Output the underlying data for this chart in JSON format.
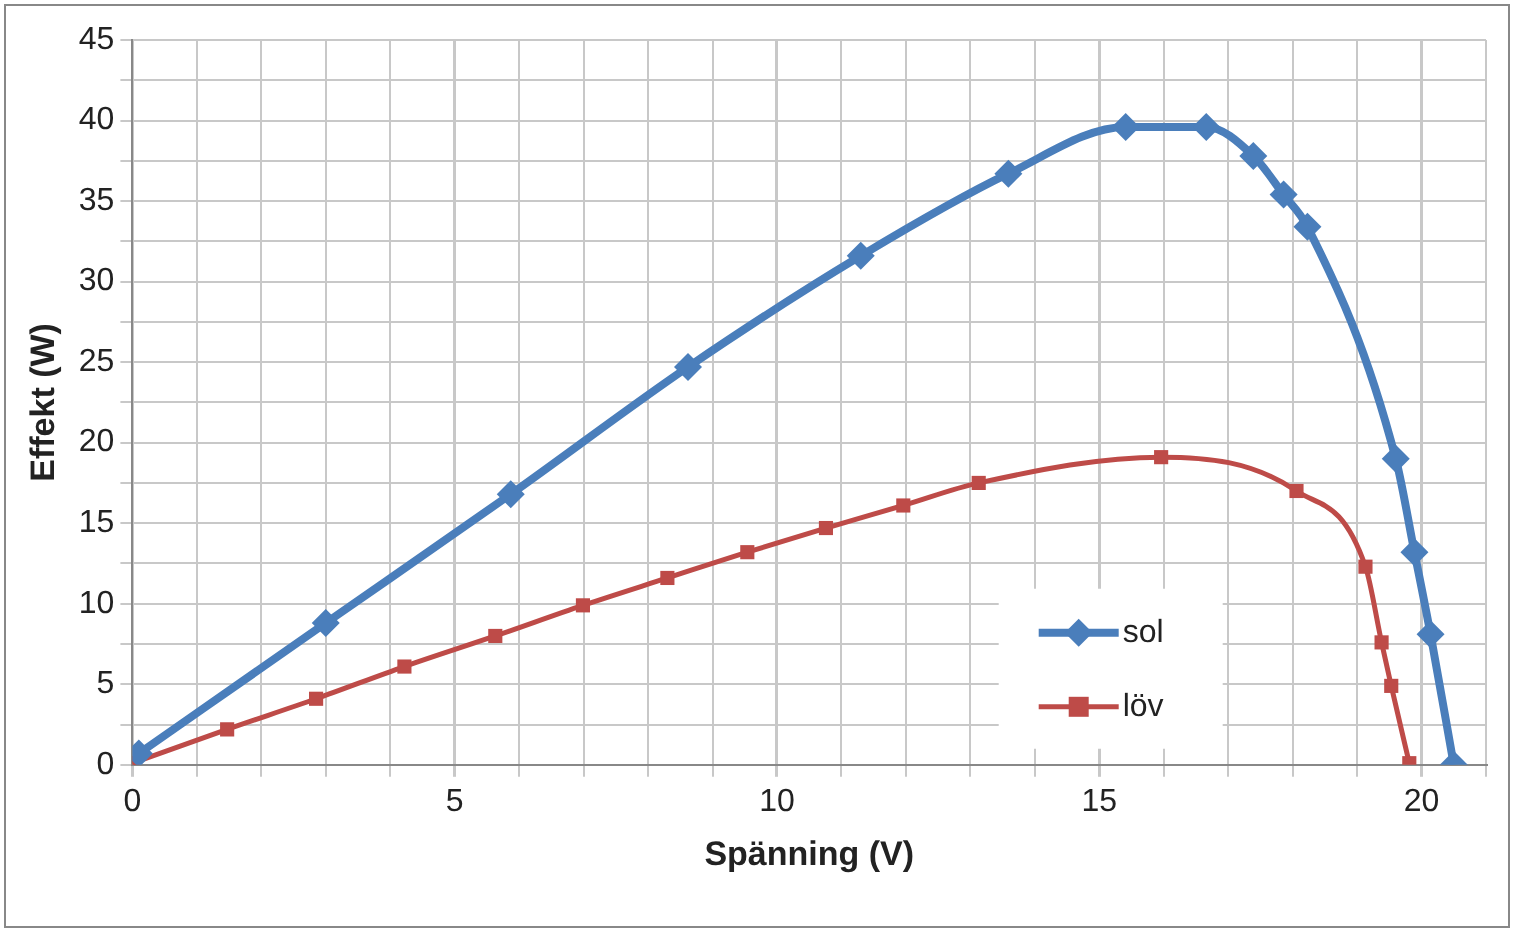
{
  "chart_data": {
    "type": "line",
    "xlabel": "Spänning (V)",
    "ylabel": "Effekt (W)",
    "xlim": [
      0,
      21
    ],
    "ylim": [
      0,
      45
    ],
    "xticks": [
      0,
      {
        "value": 1,
        "label": null
      },
      {
        "value": 2,
        "label": null
      },
      {
        "value": 3,
        "label": null
      },
      {
        "value": 4,
        "label": null
      },
      5,
      {
        "value": 6,
        "label": null
      },
      {
        "value": 7,
        "label": null
      },
      {
        "value": 8,
        "label": null
      },
      {
        "value": 9,
        "label": null
      },
      10,
      {
        "value": 11,
        "label": null
      },
      {
        "value": 12,
        "label": null
      },
      {
        "value": 13,
        "label": null
      },
      {
        "value": 14,
        "label": null
      },
      15,
      {
        "value": 16,
        "label": null
      },
      {
        "value": 17,
        "label": null
      },
      {
        "value": 18,
        "label": null
      },
      {
        "value": 19,
        "label": null
      },
      20,
      {
        "value": 21,
        "label": null
      }
    ],
    "yticks": [
      0,
      {
        "value": 2.5,
        "label": null
      },
      5,
      {
        "value": 7.5,
        "label": null
      },
      10,
      {
        "value": 12.5,
        "label": null
      },
      15,
      {
        "value": 17.5,
        "label": null
      },
      20,
      {
        "value": 22.5,
        "label": null
      },
      25,
      {
        "value": 27.5,
        "label": null
      },
      30,
      {
        "value": 32.5,
        "label": null
      },
      35,
      {
        "value": 37.5,
        "label": null
      },
      40,
      {
        "value": 42.5,
        "label": null
      },
      45
    ],
    "grid": true,
    "legend": "bottom right",
    "series": [
      {
        "name": "sol",
        "color": "#4a7ebb",
        "marker": "diamond",
        "x": [
          0.1,
          3.0,
          5.87,
          8.62,
          11.3,
          13.59,
          15.41,
          16.66,
          17.39,
          17.86,
          18.23,
          19.6,
          19.89,
          20.14,
          20.5
        ],
        "values": [
          0.7,
          8.8,
          16.8,
          24.7,
          31.6,
          36.7,
          39.6,
          39.6,
          37.8,
          35.4,
          33.4,
          19.0,
          13.2,
          8.1,
          0
        ]
      },
      {
        "name": "löv",
        "color": "#be4b48",
        "marker": "square",
        "x": [
          0,
          1.47,
          2.85,
          4.22,
          5.63,
          6.99,
          8.3,
          9.54,
          10.76,
          11.96,
          13.13,
          15.96,
          18.06,
          19.13,
          19.38,
          19.53,
          19.81
        ],
        "values": [
          0.1,
          2.2,
          4.1,
          6.1,
          8.0,
          9.9,
          11.6,
          13.2,
          14.7,
          16.1,
          17.5,
          19.1,
          17.0,
          12.3,
          7.6,
          4.9,
          0.1
        ]
      }
    ]
  }
}
